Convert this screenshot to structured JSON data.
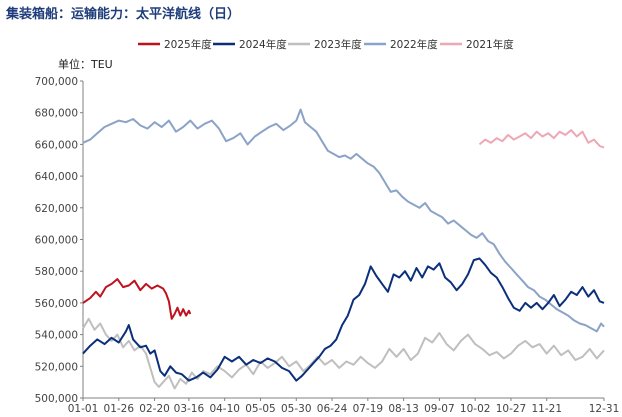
{
  "chart_data": {
    "type": "line",
    "title": "集装箱船：运输能力：太平洋航线（日）",
    "unit_label": "单位：TEU",
    "xlabel": "",
    "ylabel": "",
    "ylim": [
      500000,
      700000
    ],
    "y_ticks": [
      "500,000",
      "520,000",
      "540,000",
      "560,000",
      "580,000",
      "600,000",
      "620,000",
      "640,000",
      "660,000",
      "680,000",
      "700,000"
    ],
    "x_ticks": [
      "01-01",
      "01-26",
      "02-20",
      "03-16",
      "04-10",
      "05-05",
      "05-30",
      "06-24",
      "07-19",
      "08-13",
      "09-07",
      "10-02",
      "10-27",
      "11-21",
      "12-31"
    ],
    "x_tick_days": [
      1,
      26,
      51,
      75,
      100,
      125,
      150,
      175,
      200,
      225,
      250,
      275,
      300,
      325,
      365
    ],
    "grid": false,
    "legend_position": "top",
    "series": [
      {
        "name": "2025年度",
        "color": "#c0121e",
        "points": [
          [
            1,
            560000
          ],
          [
            6,
            563000
          ],
          [
            10,
            567000
          ],
          [
            13,
            564000
          ],
          [
            17,
            570000
          ],
          [
            21,
            572000
          ],
          [
            25,
            575000
          ],
          [
            29,
            570000
          ],
          [
            33,
            571000
          ],
          [
            37,
            574000
          ],
          [
            41,
            568000
          ],
          [
            45,
            572000
          ],
          [
            49,
            569000
          ],
          [
            53,
            571000
          ],
          [
            57,
            569000
          ],
          [
            59,
            566000
          ],
          [
            61,
            561000
          ],
          [
            63,
            550000
          ],
          [
            65,
            553000
          ],
          [
            67,
            557000
          ],
          [
            69,
            552000
          ],
          [
            71,
            556000
          ],
          [
            73,
            552000
          ],
          [
            75,
            555000
          ],
          [
            76,
            553000
          ]
        ]
      },
      {
        "name": "2024年度",
        "color": "#0b2f7a",
        "points": [
          [
            1,
            528000
          ],
          [
            6,
            533000
          ],
          [
            11,
            537000
          ],
          [
            16,
            534000
          ],
          [
            21,
            538000
          ],
          [
            26,
            535000
          ],
          [
            31,
            542000
          ],
          [
            33,
            546000
          ],
          [
            36,
            537000
          ],
          [
            41,
            532000
          ],
          [
            45,
            533000
          ],
          [
            48,
            528000
          ],
          [
            51,
            530000
          ],
          [
            55,
            517000
          ],
          [
            58,
            514000
          ],
          [
            62,
            520000
          ],
          [
            66,
            516000
          ],
          [
            70,
            515000
          ],
          [
            75,
            511000
          ],
          [
            80,
            513000
          ],
          [
            85,
            516000
          ],
          [
            90,
            513000
          ],
          [
            95,
            518000
          ],
          [
            100,
            526000
          ],
          [
            105,
            523000
          ],
          [
            110,
            526000
          ],
          [
            115,
            521000
          ],
          [
            120,
            524000
          ],
          [
            125,
            522000
          ],
          [
            130,
            525000
          ],
          [
            135,
            523000
          ],
          [
            140,
            519000
          ],
          [
            145,
            517000
          ],
          [
            150,
            511000
          ],
          [
            154,
            514000
          ],
          [
            158,
            518000
          ],
          [
            162,
            522000
          ],
          [
            166,
            526000
          ],
          [
            170,
            531000
          ],
          [
            174,
            533000
          ],
          [
            178,
            537000
          ],
          [
            182,
            546000
          ],
          [
            186,
            552000
          ],
          [
            190,
            562000
          ],
          [
            194,
            565000
          ],
          [
            198,
            572000
          ],
          [
            202,
            583000
          ],
          [
            206,
            577000
          ],
          [
            210,
            572000
          ],
          [
            214,
            567000
          ],
          [
            218,
            578000
          ],
          [
            222,
            576000
          ],
          [
            226,
            580000
          ],
          [
            230,
            574000
          ],
          [
            234,
            582000
          ],
          [
            238,
            576000
          ],
          [
            242,
            583000
          ],
          [
            246,
            581000
          ],
          [
            250,
            585000
          ],
          [
            254,
            576000
          ],
          [
            258,
            573000
          ],
          [
            262,
            568000
          ],
          [
            266,
            572000
          ],
          [
            270,
            578000
          ],
          [
            274,
            587000
          ],
          [
            278,
            588000
          ],
          [
            282,
            584000
          ],
          [
            286,
            579000
          ],
          [
            290,
            576000
          ],
          [
            294,
            570000
          ],
          [
            298,
            563000
          ],
          [
            302,
            557000
          ],
          [
            306,
            555000
          ],
          [
            310,
            560000
          ],
          [
            314,
            557000
          ],
          [
            318,
            560000
          ],
          [
            322,
            556000
          ],
          [
            326,
            560000
          ],
          [
            330,
            565000
          ],
          [
            334,
            558000
          ],
          [
            338,
            562000
          ],
          [
            342,
            567000
          ],
          [
            346,
            565000
          ],
          [
            350,
            570000
          ],
          [
            354,
            564000
          ],
          [
            358,
            568000
          ],
          [
            362,
            561000
          ],
          [
            365,
            560000
          ]
        ]
      },
      {
        "name": "2023年度",
        "color": "#bfbfbf",
        "points": [
          [
            1,
            544000
          ],
          [
            5,
            550000
          ],
          [
            9,
            543000
          ],
          [
            13,
            547000
          ],
          [
            17,
            540000
          ],
          [
            21,
            536000
          ],
          [
            25,
            540000
          ],
          [
            29,
            532000
          ],
          [
            33,
            536000
          ],
          [
            37,
            530000
          ],
          [
            41,
            533000
          ],
          [
            45,
            528000
          ],
          [
            48,
            519000
          ],
          [
            51,
            510000
          ],
          [
            54,
            507000
          ],
          [
            57,
            510000
          ],
          [
            61,
            514000
          ],
          [
            65,
            506000
          ],
          [
            69,
            512000
          ],
          [
            73,
            509000
          ],
          [
            77,
            516000
          ],
          [
            81,
            512000
          ],
          [
            85,
            517000
          ],
          [
            90,
            515000
          ],
          [
            95,
            520000
          ],
          [
            100,
            517000
          ],
          [
            105,
            513000
          ],
          [
            110,
            518000
          ],
          [
            115,
            521000
          ],
          [
            120,
            515000
          ],
          [
            125,
            523000
          ],
          [
            130,
            519000
          ],
          [
            135,
            522000
          ],
          [
            140,
            526000
          ],
          [
            145,
            520000
          ],
          [
            150,
            523000
          ],
          [
            155,
            517000
          ],
          [
            160,
            521000
          ],
          [
            165,
            526000
          ],
          [
            170,
            521000
          ],
          [
            175,
            524000
          ],
          [
            180,
            519000
          ],
          [
            185,
            523000
          ],
          [
            190,
            521000
          ],
          [
            195,
            526000
          ],
          [
            200,
            522000
          ],
          [
            205,
            519000
          ],
          [
            210,
            523000
          ],
          [
            215,
            531000
          ],
          [
            220,
            526000
          ],
          [
            225,
            531000
          ],
          [
            230,
            524000
          ],
          [
            235,
            528000
          ],
          [
            240,
            538000
          ],
          [
            245,
            535000
          ],
          [
            250,
            541000
          ],
          [
            255,
            534000
          ],
          [
            260,
            530000
          ],
          [
            265,
            536000
          ],
          [
            270,
            540000
          ],
          [
            275,
            534000
          ],
          [
            280,
            531000
          ],
          [
            285,
            527000
          ],
          [
            290,
            529000
          ],
          [
            295,
            525000
          ],
          [
            300,
            528000
          ],
          [
            305,
            533000
          ],
          [
            310,
            536000
          ],
          [
            315,
            532000
          ],
          [
            320,
            534000
          ],
          [
            325,
            528000
          ],
          [
            330,
            533000
          ],
          [
            335,
            527000
          ],
          [
            340,
            530000
          ],
          [
            345,
            524000
          ],
          [
            350,
            526000
          ],
          [
            355,
            531000
          ],
          [
            360,
            525000
          ],
          [
            365,
            530000
          ]
        ]
      },
      {
        "name": "2022年度",
        "color": "#8ba3c7",
        "points": [
          [
            1,
            661000
          ],
          [
            6,
            663000
          ],
          [
            11,
            667000
          ],
          [
            16,
            671000
          ],
          [
            21,
            673000
          ],
          [
            26,
            675000
          ],
          [
            31,
            674000
          ],
          [
            36,
            676000
          ],
          [
            41,
            672000
          ],
          [
            46,
            670000
          ],
          [
            51,
            674000
          ],
          [
            56,
            671000
          ],
          [
            61,
            675000
          ],
          [
            66,
            668000
          ],
          [
            71,
            671000
          ],
          [
            76,
            675000
          ],
          [
            81,
            670000
          ],
          [
            86,
            673000
          ],
          [
            91,
            675000
          ],
          [
            96,
            670000
          ],
          [
            101,
            662000
          ],
          [
            106,
            664000
          ],
          [
            111,
            667000
          ],
          [
            116,
            660000
          ],
          [
            121,
            665000
          ],
          [
            126,
            668000
          ],
          [
            131,
            671000
          ],
          [
            136,
            673000
          ],
          [
            141,
            669000
          ],
          [
            146,
            672000
          ],
          [
            150,
            675000
          ],
          [
            153,
            682000
          ],
          [
            156,
            674000
          ],
          [
            160,
            671000
          ],
          [
            164,
            668000
          ],
          [
            168,
            662000
          ],
          [
            172,
            656000
          ],
          [
            176,
            654000
          ],
          [
            180,
            652000
          ],
          [
            184,
            653000
          ],
          [
            188,
            651000
          ],
          [
            192,
            654000
          ],
          [
            196,
            651000
          ],
          [
            200,
            648000
          ],
          [
            204,
            646000
          ],
          [
            208,
            642000
          ],
          [
            212,
            636000
          ],
          [
            216,
            630000
          ],
          [
            220,
            631000
          ],
          [
            224,
            627000
          ],
          [
            228,
            624000
          ],
          [
            232,
            622000
          ],
          [
            236,
            620000
          ],
          [
            240,
            623000
          ],
          [
            244,
            618000
          ],
          [
            248,
            616000
          ],
          [
            252,
            614000
          ],
          [
            256,
            610000
          ],
          [
            260,
            612000
          ],
          [
            264,
            609000
          ],
          [
            268,
            606000
          ],
          [
            272,
            603000
          ],
          [
            276,
            601000
          ],
          [
            280,
            604000
          ],
          [
            284,
            599000
          ],
          [
            288,
            597000
          ],
          [
            292,
            591000
          ],
          [
            296,
            586000
          ],
          [
            300,
            582000
          ],
          [
            304,
            578000
          ],
          [
            308,
            574000
          ],
          [
            312,
            570000
          ],
          [
            316,
            568000
          ],
          [
            320,
            564000
          ],
          [
            324,
            562000
          ],
          [
            328,
            559000
          ],
          [
            332,
            556000
          ],
          [
            336,
            554000
          ],
          [
            340,
            552000
          ],
          [
            344,
            549000
          ],
          [
            348,
            547000
          ],
          [
            352,
            546000
          ],
          [
            356,
            544000
          ],
          [
            360,
            542000
          ],
          [
            363,
            547000
          ],
          [
            365,
            545000
          ]
        ]
      },
      {
        "name": "2021年度",
        "color": "#eea7b4",
        "points": [
          [
            278,
            660000
          ],
          [
            282,
            663000
          ],
          [
            286,
            661000
          ],
          [
            290,
            664000
          ],
          [
            294,
            662000
          ],
          [
            298,
            666000
          ],
          [
            302,
            663000
          ],
          [
            306,
            665000
          ],
          [
            310,
            667000
          ],
          [
            314,
            664000
          ],
          [
            318,
            668000
          ],
          [
            322,
            665000
          ],
          [
            326,
            667000
          ],
          [
            330,
            664000
          ],
          [
            334,
            668000
          ],
          [
            338,
            666000
          ],
          [
            342,
            669000
          ],
          [
            346,
            665000
          ],
          [
            350,
            668000
          ],
          [
            354,
            661000
          ],
          [
            358,
            663000
          ],
          [
            362,
            659000
          ],
          [
            365,
            658000
          ]
        ]
      }
    ]
  }
}
